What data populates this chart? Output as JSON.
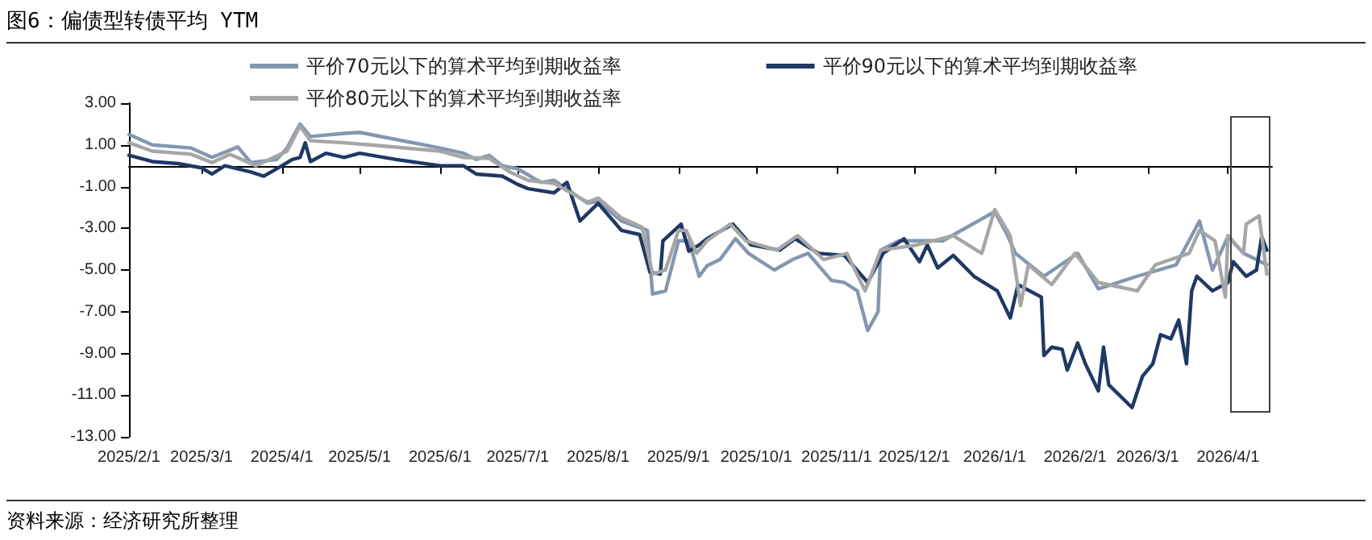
{
  "chart_data": {
    "type": "line",
    "title": "图6：偏债型转债平均 YTM",
    "annotations": [
      "资料来源：经济研究所整理"
    ],
    "xlim": [
      "2025-02-01",
      "2026-04-18"
    ],
    "xticks": [
      {
        "value": "2025-02-01",
        "label": "2025/2/1"
      },
      {
        "value": "2025-03-01",
        "label": "2025/3/1"
      },
      {
        "value": "2025-04-01",
        "label": "2025/4/1"
      },
      {
        "value": "2025-05-01",
        "label": "2025/5/1"
      },
      {
        "value": "2025-06-01",
        "label": "2025/6/1"
      },
      {
        "value": "2025-07-01",
        "label": "2025/7/1"
      },
      {
        "value": "2025-08-01",
        "label": "2025/8/1"
      },
      {
        "value": "2025-09-01",
        "label": "2025/9/1"
      },
      {
        "value": "2025-10-01",
        "label": "2025/10/1"
      },
      {
        "value": "2025-11-01",
        "label": "2025/11/1"
      },
      {
        "value": "2025-12-01",
        "label": "2025/12/1"
      },
      {
        "value": "2026-01-01",
        "label": "2026/1/1"
      },
      {
        "value": "2026-02-01",
        "label": "2026/2/1"
      },
      {
        "value": "2026-03-01",
        "label": "2026/3/1"
      },
      {
        "value": "2026-04-01",
        "label": "2026/4/1"
      }
    ],
    "ylim": [
      -13,
      3
    ],
    "yticks": [
      {
        "value": 3,
        "label": "3.00"
      },
      {
        "value": 1,
        "label": "1.00"
      },
      {
        "value": -1,
        "label": "-1.00"
      },
      {
        "value": -3,
        "label": "-3.00"
      },
      {
        "value": -5,
        "label": "-5.00"
      },
      {
        "value": -7,
        "label": "-7.00"
      },
      {
        "value": -9,
        "label": "-9.00"
      },
      {
        "value": -11,
        "label": "-11.00"
      },
      {
        "value": -13,
        "label": "-13.00"
      }
    ],
    "grid": false,
    "legend": "top",
    "marker": "none",
    "line_style": "solid",
    "series": [
      {
        "name": "平价70元以下的算术平均到期收益率",
        "color": "#8497b0",
        "x": [
          "2025-02-01",
          "2025-02-10",
          "2025-02-25",
          "2025-03-05",
          "2025-03-15",
          "2025-03-20",
          "2025-03-30",
          "2025-04-03",
          "2025-04-08",
          "2025-04-12",
          "2025-04-25",
          "2025-05-01",
          "2025-06-01",
          "2025-06-10",
          "2025-06-15",
          "2025-06-20",
          "2025-06-25",
          "2025-07-01",
          "2025-07-10",
          "2025-07-15",
          "2025-07-28",
          "2025-08-01",
          "2025-08-10",
          "2025-08-20",
          "2025-08-22",
          "2025-08-27",
          "2025-09-01",
          "2025-09-05",
          "2025-09-09",
          "2025-09-12",
          "2025-09-17",
          "2025-09-23",
          "2025-09-28",
          "2025-10-08",
          "2025-10-15",
          "2025-10-21",
          "2025-10-30",
          "2025-11-04",
          "2025-11-09",
          "2025-11-13",
          "2025-11-17",
          "2025-11-18",
          "2025-11-25",
          "2025-12-12",
          "2026-01-01",
          "2026-01-06",
          "2026-01-09",
          "2026-01-20",
          "2026-02-02",
          "2026-02-10",
          "2026-02-25",
          "2026-03-12",
          "2026-03-21",
          "2026-03-26",
          "2026-04-01",
          "2026-04-07",
          "2026-04-16"
        ],
        "values": [
          1.5,
          1.0,
          0.85,
          0.4,
          0.9,
          0.15,
          0.3,
          0.85,
          2.0,
          1.4,
          1.55,
          1.6,
          0.85,
          0.6,
          0.3,
          0.5,
          0.0,
          -0.15,
          -0.8,
          -0.7,
          -1.8,
          -1.7,
          -2.65,
          -3.1,
          -6.15,
          -6.0,
          -3.6,
          -3.6,
          -5.3,
          -4.8,
          -4.5,
          -3.5,
          -4.2,
          -5.0,
          -4.5,
          -4.2,
          -5.5,
          -5.6,
          -6.0,
          -7.9,
          -7.0,
          -4.05,
          -3.6,
          -3.6,
          -2.2,
          -3.35,
          -4.2,
          -5.3,
          -4.2,
          -5.9,
          -5.3,
          -4.75,
          -2.65,
          -5.0,
          -3.4,
          -4.2,
          -4.75
        ]
      },
      {
        "name": "平价90元以下的算术平均到期收益率",
        "color": "#1f3864",
        "x": [
          "2025-02-01",
          "2025-02-10",
          "2025-02-20",
          "2025-03-01",
          "2025-03-05",
          "2025-03-10",
          "2025-03-20",
          "2025-03-25",
          "2025-04-01",
          "2025-04-05",
          "2025-04-08",
          "2025-04-10",
          "2025-04-12",
          "2025-04-18",
          "2025-04-25",
          "2025-05-01",
          "2025-05-15",
          "2025-06-01",
          "2025-06-10",
          "2025-06-15",
          "2025-06-25",
          "2025-07-01",
          "2025-07-05",
          "2025-07-15",
          "2025-07-20",
          "2025-07-25",
          "2025-08-01",
          "2025-08-10",
          "2025-08-17",
          "2025-08-21",
          "2025-08-25",
          "2025-08-26",
          "2025-09-02",
          "2025-09-05",
          "2025-09-09",
          "2025-09-12",
          "2025-09-22",
          "2025-09-29",
          "2025-10-10",
          "2025-10-16",
          "2025-10-25",
          "2025-11-04",
          "2025-11-13",
          "2025-11-19",
          "2025-11-27",
          "2025-12-03",
          "2025-12-06",
          "2025-12-10",
          "2025-12-16",
          "2025-12-24",
          "2026-01-02",
          "2026-01-07",
          "2026-01-10",
          "2026-01-19",
          "2026-01-20",
          "2026-01-23",
          "2026-01-27",
          "2026-01-29",
          "2026-02-02",
          "2026-02-05",
          "2026-02-10",
          "2026-02-12",
          "2026-02-14",
          "2026-02-23",
          "2026-02-27",
          "2026-03-03",
          "2026-03-06",
          "2026-03-10",
          "2026-03-13",
          "2026-03-16",
          "2026-03-18",
          "2026-03-20",
          "2026-03-26",
          "2026-04-01",
          "2026-04-03",
          "2026-04-08",
          "2026-04-12",
          "2026-04-14",
          "2026-04-16"
        ],
        "values": [
          0.5,
          0.2,
          0.1,
          -0.1,
          -0.4,
          0.0,
          -0.3,
          -0.5,
          0.0,
          0.3,
          0.4,
          1.1,
          0.2,
          0.6,
          0.4,
          0.6,
          0.3,
          0.0,
          0.0,
          -0.4,
          -0.5,
          -0.9,
          -1.1,
          -1.3,
          -0.8,
          -2.65,
          -1.8,
          -3.1,
          -3.3,
          -5.1,
          -5.2,
          -3.6,
          -2.8,
          -4.1,
          -3.8,
          -3.5,
          -2.8,
          -3.8,
          -4.05,
          -3.5,
          -4.2,
          -4.3,
          -5.6,
          -4.2,
          -3.5,
          -4.6,
          -3.8,
          -4.9,
          -4.3,
          -5.3,
          -6.0,
          -7.3,
          -5.7,
          -6.3,
          -9.1,
          -8.7,
          -8.8,
          -9.8,
          -8.5,
          -9.5,
          -10.8,
          -8.7,
          -10.5,
          -11.6,
          -10.1,
          -9.5,
          -8.1,
          -8.3,
          -7.4,
          -9.5,
          -6.0,
          -5.3,
          -6.0,
          -5.6,
          -4.6,
          -5.3,
          -5.0,
          -3.4,
          -4.05
        ]
      },
      {
        "name": "平价80元以下的算术平均到期收益率",
        "color": "#a6a6a6",
        "x": [
          "2025-02-01",
          "2025-02-10",
          "2025-02-25",
          "2025-03-05",
          "2025-03-12",
          "2025-03-22",
          "2025-04-03",
          "2025-04-08",
          "2025-04-12",
          "2025-04-25",
          "2025-05-05",
          "2025-06-01",
          "2025-06-10",
          "2025-06-20",
          "2025-06-28",
          "2025-07-05",
          "2025-07-15",
          "2025-07-28",
          "2025-08-01",
          "2025-08-10",
          "2025-08-18",
          "2025-08-22",
          "2025-08-27",
          "2025-09-01",
          "2025-09-04",
          "2025-09-08",
          "2025-09-12",
          "2025-09-21",
          "2025-09-27",
          "2025-10-09",
          "2025-10-17",
          "2025-10-27",
          "2025-11-05",
          "2025-11-12",
          "2025-11-18",
          "2025-12-02",
          "2025-12-16",
          "2025-12-27",
          "2026-01-01",
          "2026-01-07",
          "2026-01-11",
          "2026-01-14",
          "2026-01-23",
          "2026-02-01",
          "2026-02-10",
          "2026-02-25",
          "2026-03-04",
          "2026-03-17",
          "2026-03-21",
          "2026-03-27",
          "2026-03-31",
          "2026-04-01",
          "2026-04-07",
          "2026-04-08",
          "2026-04-13",
          "2026-04-16"
        ],
        "values": [
          1.1,
          0.7,
          0.55,
          0.15,
          0.55,
          0.0,
          0.7,
          1.9,
          1.2,
          1.1,
          1.0,
          0.7,
          0.4,
          0.35,
          -0.3,
          -0.7,
          -0.85,
          -1.75,
          -1.55,
          -2.5,
          -2.95,
          -5.2,
          -5.0,
          -3.1,
          -3.1,
          -4.2,
          -3.6,
          -2.8,
          -3.6,
          -4.05,
          -3.35,
          -4.5,
          -4.2,
          -6.0,
          -4.05,
          -3.8,
          -3.35,
          -4.2,
          -2.1,
          -3.35,
          -6.7,
          -4.75,
          -5.7,
          -4.2,
          -5.6,
          -6.0,
          -4.75,
          -4.2,
          -3.1,
          -3.6,
          -6.3,
          -3.35,
          -4.2,
          -2.8,
          -2.4,
          -5.2
        ]
      }
    ]
  }
}
